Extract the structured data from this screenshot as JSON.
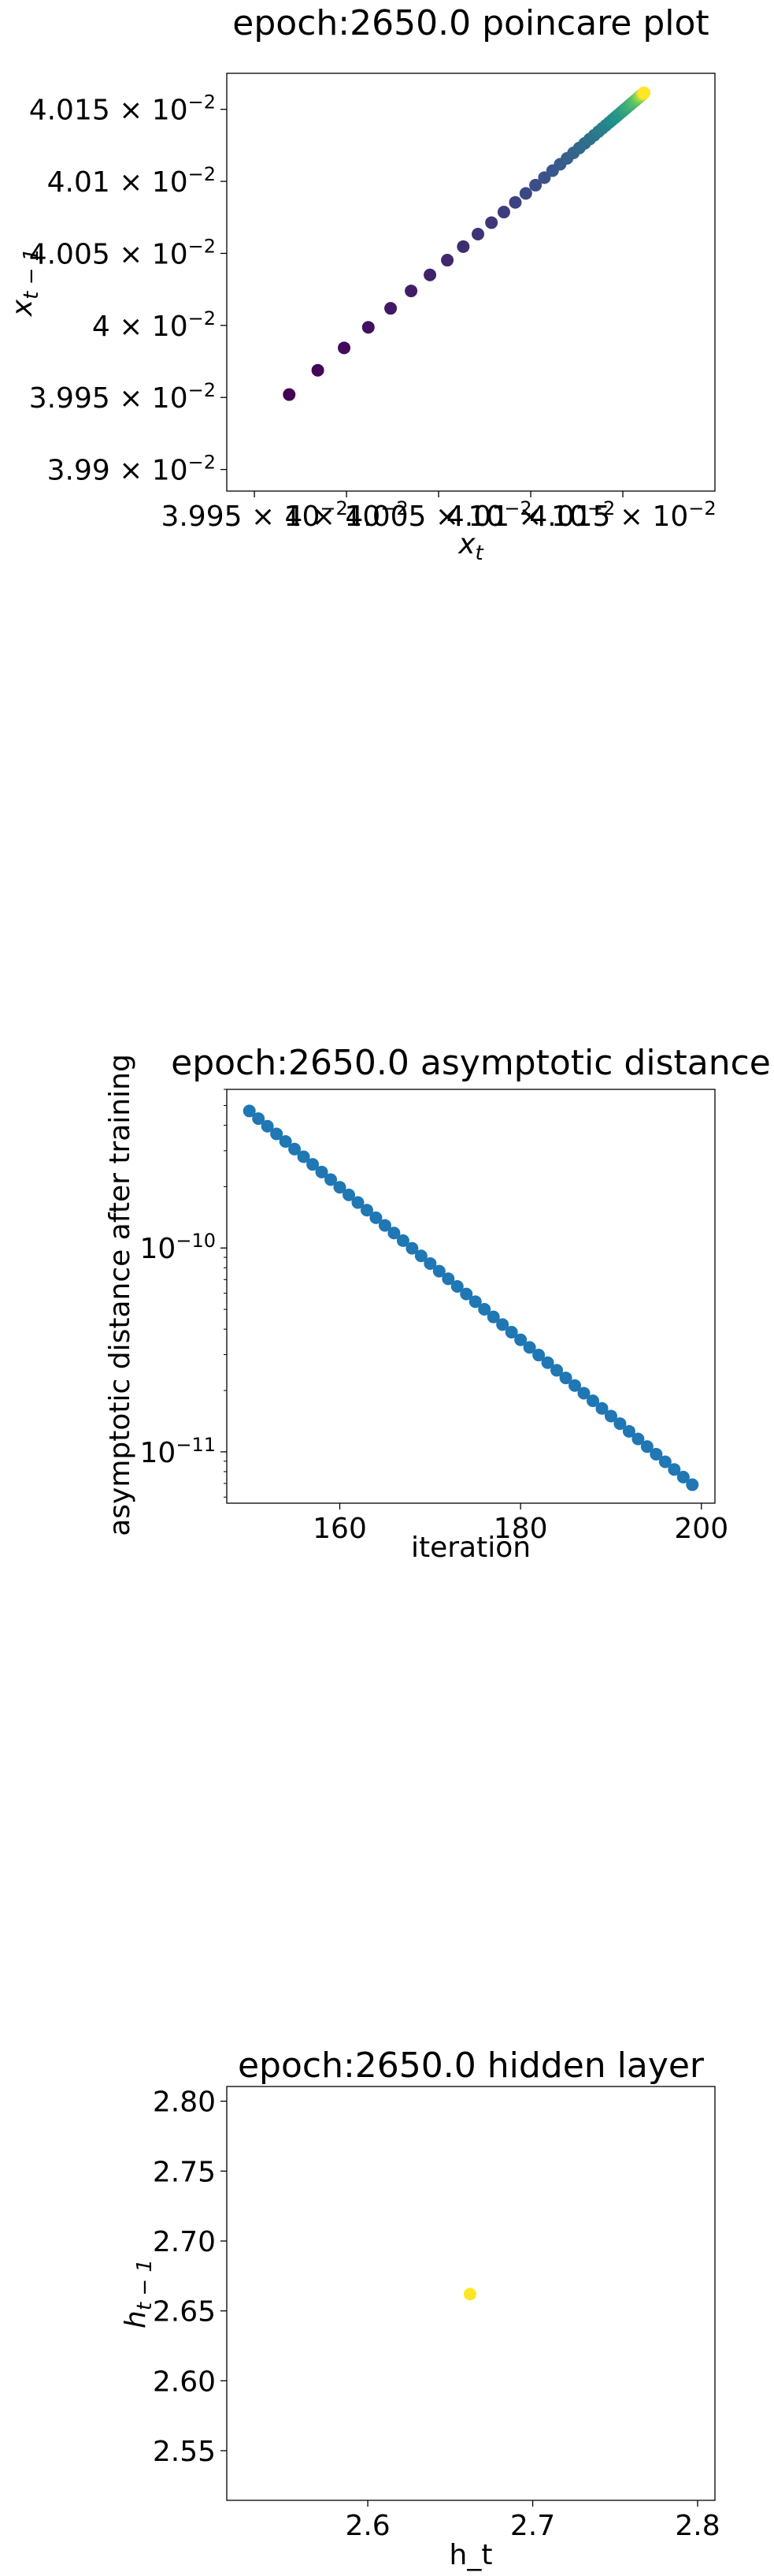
{
  "chart_data": [
    {
      "type": "scatter",
      "title": "epoch:2650.0 poincare plot",
      "xlabel": "x_t",
      "ylabel": "x_{t-1}",
      "xlim": [
        0.039935,
        0.0402
      ],
      "ylim": [
        0.039885,
        0.040175
      ],
      "x_ticks": [
        {
          "value": 0.03995,
          "mant": "3.995"
        },
        {
          "value": 0.04,
          "mant": "4"
        },
        {
          "value": 0.04005,
          "mant": "4.005"
        },
        {
          "value": 0.0401,
          "mant": "4.01"
        },
        {
          "value": 0.04015,
          "mant": "4.015"
        }
      ],
      "y_ticks": [
        {
          "value": 0.0399,
          "mant": "3.99"
        },
        {
          "value": 0.03995,
          "mant": "3.995"
        },
        {
          "value": 0.04,
          "mant": "4"
        },
        {
          "value": 0.04005,
          "mant": "4.005"
        },
        {
          "value": 0.0401,
          "mant": "4.01"
        },
        {
          "value": 0.04015,
          "mant": "4.015"
        }
      ],
      "tick_exp_label": "× 10",
      "tick_exp": "−2",
      "colormap": "viridis",
      "x_start": 0.039952,
      "ratio": 0.92,
      "fixed_point": 0.040163,
      "n_points": 60,
      "grid": false
    },
    {
      "type": "scatter",
      "title": "epoch:2650.0 asymptotic distance",
      "xlabel": "iteration",
      "ylabel": "asymptotic distance after training",
      "yscale": "log",
      "xlim": [
        147.5,
        201.5
      ],
      "ylim": [
        5.6e-12,
        6e-10
      ],
      "x_ticks": [
        160,
        180,
        200
      ],
      "y_ticks": [
        {
          "value": 1e-10,
          "base": "10",
          "exp": "−10"
        },
        {
          "value": 1e-11,
          "base": "10",
          "exp": "−11"
        }
      ],
      "x_start": 150,
      "x_end": 199,
      "y_start": 4.7e-10,
      "y_end": 6.9e-12,
      "color": "#1f77b4",
      "grid": false
    },
    {
      "type": "scatter",
      "title": "epoch:2650.0 hidden layer",
      "xlabel": "h_t",
      "ylabel": "h_{t-1}",
      "xlim": [
        2.5145,
        2.8105
      ],
      "ylim": [
        2.5145,
        2.8105
      ],
      "x_ticks": [
        "2.6",
        "2.7",
        "2.8"
      ],
      "y_ticks": [
        "2.55",
        "2.60",
        "2.65",
        "2.70",
        "2.75",
        "2.80"
      ],
      "points": [
        {
          "x": 2.662,
          "y": 2.662
        }
      ],
      "color": "#fde725",
      "grid": false
    }
  ]
}
